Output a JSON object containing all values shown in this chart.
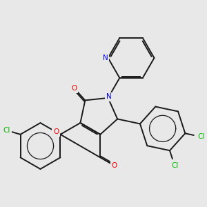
{
  "bg_color": "#e8e8e8",
  "bond_color": "#1a1a1a",
  "atom_colors": {
    "Cl": "#00bb00",
    "O": "#ee0000",
    "N": "#0000ee"
  },
  "bond_width": 1.4,
  "font_size": 7.5
}
